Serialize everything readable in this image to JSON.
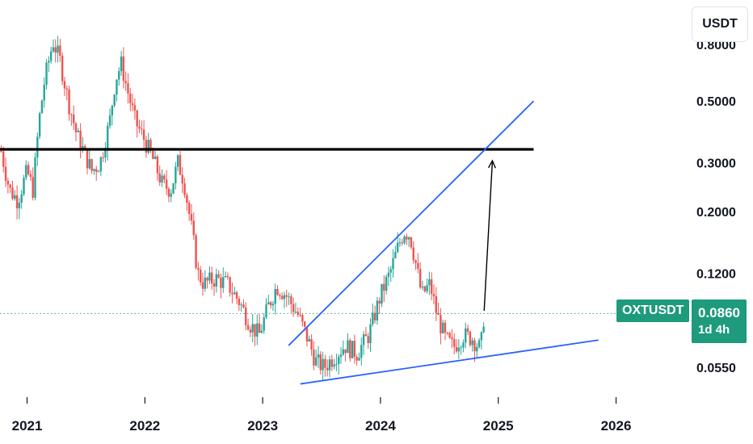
{
  "currency_label": "USDT",
  "symbol": "OXTUSDT",
  "last_price": "0.0860",
  "countdown": "1d 4h",
  "colors": {
    "up": "#26a69a",
    "down": "#ef5350",
    "trendline": "#2962ff",
    "horizontal_line": "#000000",
    "price_label_bg": "#1e9a7c"
  },
  "chart_data": {
    "type": "candlestick",
    "scale": "log",
    "y_ticks": [
      "0.8000",
      "0.5000",
      "0.3000",
      "0.2000",
      "0.1200",
      "0.0550"
    ],
    "y_tick_values": [
      0.8,
      0.5,
      0.3,
      0.2,
      0.12,
      0.055
    ],
    "x_ticks": [
      "2021",
      "2022",
      "2023",
      "2024",
      "2025",
      "2026"
    ],
    "x_tick_values": [
      2021,
      2022,
      2023,
      2024,
      2025,
      2026
    ],
    "x_range": [
      2020.77,
      2026.6
    ],
    "y_range": [
      0.043,
      1.08
    ],
    "last_price": 0.086,
    "price_path": [
      [
        2020.78,
        0.33
      ],
      [
        2020.85,
        0.24
      ],
      [
        2020.92,
        0.22
      ],
      [
        2021.0,
        0.28
      ],
      [
        2021.05,
        0.24
      ],
      [
        2021.1,
        0.42
      ],
      [
        2021.15,
        0.6
      ],
      [
        2021.22,
        0.82
      ],
      [
        2021.28,
        0.7
      ],
      [
        2021.35,
        0.5
      ],
      [
        2021.42,
        0.38
      ],
      [
        2021.48,
        0.33
      ],
      [
        2021.55,
        0.28
      ],
      [
        2021.62,
        0.3
      ],
      [
        2021.7,
        0.42
      ],
      [
        2021.75,
        0.6
      ],
      [
        2021.8,
        0.68
      ],
      [
        2021.85,
        0.55
      ],
      [
        2021.92,
        0.42
      ],
      [
        2022.0,
        0.36
      ],
      [
        2022.08,
        0.3
      ],
      [
        2022.15,
        0.25
      ],
      [
        2022.22,
        0.24
      ],
      [
        2022.28,
        0.3
      ],
      [
        2022.33,
        0.26
      ],
      [
        2022.4,
        0.17
      ],
      [
        2022.45,
        0.12
      ],
      [
        2022.5,
        0.11
      ],
      [
        2022.6,
        0.115
      ],
      [
        2022.7,
        0.11
      ],
      [
        2022.8,
        0.095
      ],
      [
        2022.9,
        0.078
      ],
      [
        2022.97,
        0.072
      ],
      [
        2023.05,
        0.092
      ],
      [
        2023.12,
        0.108
      ],
      [
        2023.2,
        0.1
      ],
      [
        2023.3,
        0.085
      ],
      [
        2023.38,
        0.07
      ],
      [
        2023.45,
        0.058
      ],
      [
        2023.52,
        0.055
      ],
      [
        2023.6,
        0.06
      ],
      [
        2023.7,
        0.066
      ],
      [
        2023.8,
        0.062
      ],
      [
        2023.9,
        0.072
      ],
      [
        2024.0,
        0.1
      ],
      [
        2024.08,
        0.12
      ],
      [
        2024.15,
        0.15
      ],
      [
        2024.2,
        0.17
      ],
      [
        2024.25,
        0.165
      ],
      [
        2024.3,
        0.13
      ],
      [
        2024.35,
        0.1
      ],
      [
        2024.42,
        0.11
      ],
      [
        2024.48,
        0.085
      ],
      [
        2024.55,
        0.07
      ],
      [
        2024.62,
        0.065
      ],
      [
        2024.7,
        0.072
      ],
      [
        2024.78,
        0.07
      ],
      [
        2024.85,
        0.064
      ],
      [
        2024.88,
        0.086
      ]
    ],
    "annotations": {
      "horizontal_line": {
        "price": 0.335,
        "x_start": 2020.77,
        "x_end": 2025.3
      },
      "upper_trendline": {
        "from": [
          2023.22,
          0.066
        ],
        "to": [
          2025.3,
          0.5
        ]
      },
      "lower_trendline": {
        "from": [
          2023.32,
          0.048
        ],
        "to": [
          2025.85,
          0.069
        ]
      },
      "arrow": {
        "from": [
          2024.88,
          0.088
        ],
        "to": [
          2024.95,
          0.305
        ]
      }
    }
  }
}
